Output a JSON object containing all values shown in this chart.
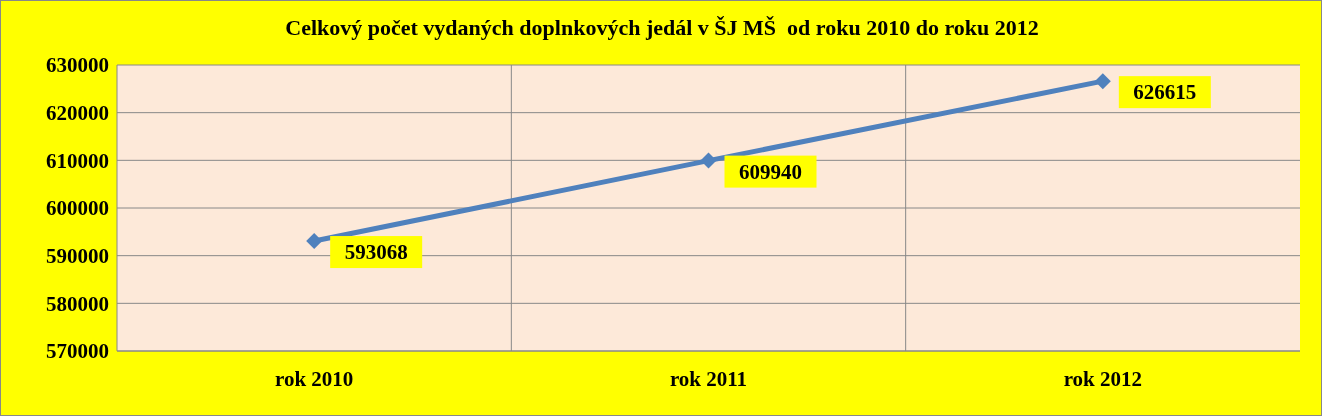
{
  "chart_data": {
    "type": "line",
    "title": "Celkový počet vydaných doplnkových jedál v ŠJ MŠ  od roku 2010 do roku 2012",
    "categories": [
      "rok 2010",
      "rok 2011",
      "rok 2012"
    ],
    "series": [
      {
        "color": "#4f81bd",
        "values": [
          593068,
          609940,
          626615
        ]
      }
    ],
    "ylim": [
      570000,
      630000
    ],
    "yticks": [
      570000,
      580000,
      590000,
      600000,
      610000,
      620000,
      630000
    ],
    "grid": true,
    "marker": "diamond",
    "line_style": "solid",
    "data_labels": true,
    "legend": false
  }
}
